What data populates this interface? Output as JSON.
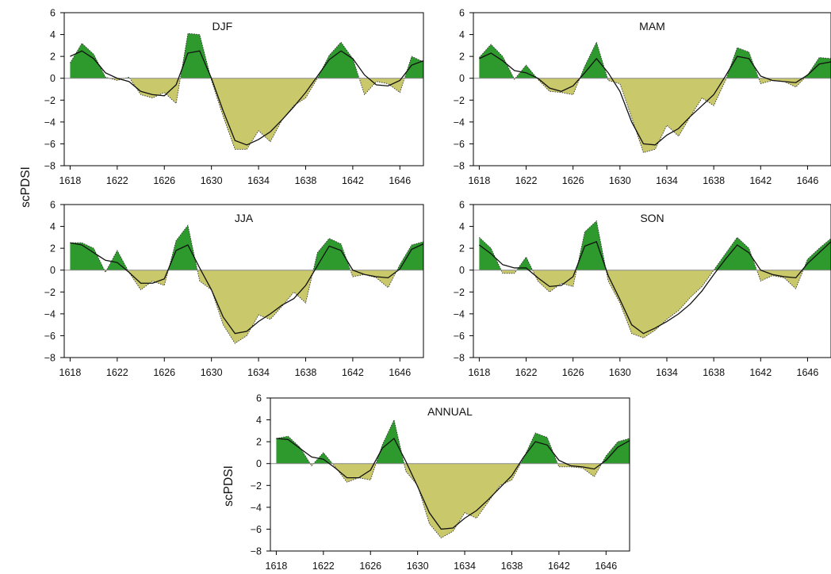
{
  "colors": {
    "positive_fill": "#2e9a2e",
    "negative_fill": "#c9c86a",
    "smooth_line": "#111111",
    "raw_line": "#333333",
    "zero_line": "#8a8a8a",
    "axis": "#000000"
  },
  "chart_data": [
    {
      "type": "area",
      "title": "DJF",
      "ylabel": "scPDSI",
      "xlim": [
        1617.5,
        1648
      ],
      "ylim": [
        -8,
        6
      ],
      "xticks": [
        1618,
        1622,
        1626,
        1630,
        1634,
        1638,
        1642,
        1646
      ],
      "yticks": [
        -8,
        -6,
        -4,
        -2,
        0,
        2,
        4,
        6
      ],
      "series": [
        {
          "x": [
            1618,
            1619,
            1620,
            1621,
            1622,
            1623,
            1624,
            1625,
            1626,
            1627,
            1628,
            1629,
            1630,
            1631,
            1632,
            1633,
            1634,
            1635,
            1636,
            1637,
            1638,
            1639,
            1640,
            1641,
            1642,
            1643,
            1644,
            1645,
            1646,
            1647,
            1648
          ],
          "values": [
            1.4,
            3.2,
            2.2,
            0.1,
            -0.2,
            0.1,
            -1.5,
            -1.8,
            -1.3,
            -2.3,
            4.1,
            4.0,
            -0.2,
            -3.5,
            -6.5,
            -6.5,
            -4.8,
            -5.8,
            -3.8,
            -2.5,
            -1.8,
            0.0,
            2.1,
            3.3,
            1.8,
            -1.5,
            -0.3,
            -0.5,
            -1.3,
            2.0,
            1.5
          ]
        },
        {
          "x": [
            1618,
            1619,
            1620,
            1621,
            1622,
            1623,
            1624,
            1625,
            1626,
            1627,
            1628,
            1629,
            1630,
            1631,
            1632,
            1633,
            1634,
            1635,
            1636,
            1637,
            1638,
            1639,
            1640,
            1641,
            1642,
            1643,
            1644,
            1645,
            1646,
            1647,
            1648
          ],
          "values": [
            2.0,
            2.5,
            1.8,
            0.5,
            0.0,
            -0.3,
            -1.2,
            -1.5,
            -1.6,
            -0.6,
            2.3,
            2.5,
            0.0,
            -3.0,
            -5.7,
            -6.1,
            -5.6,
            -4.9,
            -3.8,
            -2.6,
            -1.3,
            0.2,
            1.7,
            2.5,
            1.8,
            0.3,
            -0.6,
            -0.7,
            -0.2,
            1.2,
            1.6
          ]
        }
      ]
    },
    {
      "type": "area",
      "title": "MAM",
      "ylabel": "",
      "xlim": [
        1617.5,
        1648
      ],
      "ylim": [
        -8,
        6
      ],
      "xticks": [
        1618,
        1622,
        1626,
        1630,
        1634,
        1638,
        1642,
        1646
      ],
      "yticks": [
        -8,
        -6,
        -4,
        -2,
        0,
        2,
        4,
        6
      ],
      "series": [
        {
          "x": [
            1618,
            1619,
            1620,
            1621,
            1622,
            1623,
            1624,
            1625,
            1626,
            1627,
            1628,
            1629,
            1630,
            1631,
            1632,
            1633,
            1634,
            1635,
            1636,
            1637,
            1638,
            1639,
            1640,
            1641,
            1642,
            1643,
            1644,
            1645,
            1646,
            1647,
            1648
          ],
          "values": [
            1.9,
            3.1,
            2.0,
            -0.1,
            1.2,
            -0.1,
            -1.2,
            -1.3,
            -1.5,
            1.1,
            3.3,
            -0.2,
            -0.5,
            -3.6,
            -6.8,
            -6.5,
            -4.3,
            -5.3,
            -3.5,
            -1.8,
            -2.5,
            -0.2,
            2.8,
            2.4,
            -0.5,
            -0.2,
            -0.3,
            -0.8,
            0.3,
            1.9,
            1.8
          ]
        },
        {
          "x": [
            1618,
            1619,
            1620,
            1621,
            1622,
            1623,
            1624,
            1625,
            1626,
            1627,
            1628,
            1629,
            1630,
            1631,
            1632,
            1633,
            1634,
            1635,
            1636,
            1637,
            1638,
            1639,
            1640,
            1641,
            1642,
            1643,
            1644,
            1645,
            1646,
            1647,
            1648
          ],
          "values": [
            1.8,
            2.3,
            1.6,
            0.7,
            0.5,
            0.0,
            -0.9,
            -1.2,
            -0.7,
            0.5,
            1.8,
            0.5,
            -1.2,
            -4.0,
            -6.0,
            -6.1,
            -5.2,
            -4.6,
            -3.5,
            -2.5,
            -1.5,
            0.2,
            2.0,
            1.8,
            0.2,
            -0.2,
            -0.3,
            -0.4,
            0.3,
            1.3,
            1.5
          ]
        }
      ]
    },
    {
      "type": "area",
      "title": "JJA",
      "ylabel": "",
      "xlim": [
        1617.5,
        1648
      ],
      "ylim": [
        -8,
        6
      ],
      "xticks": [
        1618,
        1622,
        1626,
        1630,
        1634,
        1638,
        1642,
        1646
      ],
      "yticks": [
        -8,
        -6,
        -4,
        -2,
        0,
        2,
        4,
        6
      ],
      "series": [
        {
          "x": [
            1618,
            1619,
            1620,
            1621,
            1622,
            1623,
            1624,
            1625,
            1626,
            1627,
            1628,
            1629,
            1630,
            1631,
            1632,
            1633,
            1634,
            1635,
            1636,
            1637,
            1638,
            1639,
            1640,
            1641,
            1642,
            1643,
            1644,
            1645,
            1646,
            1647,
            1648
          ],
          "values": [
            2.5,
            2.5,
            2.0,
            -0.2,
            1.8,
            -0.2,
            -1.8,
            -1.0,
            -1.4,
            2.7,
            4.1,
            -1.0,
            -1.8,
            -5.0,
            -6.7,
            -6.0,
            -4.1,
            -4.5,
            -3.3,
            -2.0,
            -3.0,
            1.6,
            2.9,
            2.4,
            -0.6,
            -0.4,
            -0.7,
            -1.6,
            0.5,
            2.3,
            2.6
          ]
        },
        {
          "x": [
            1618,
            1619,
            1620,
            1621,
            1622,
            1623,
            1624,
            1625,
            1626,
            1627,
            1628,
            1629,
            1630,
            1631,
            1632,
            1633,
            1634,
            1635,
            1636,
            1637,
            1638,
            1639,
            1640,
            1641,
            1642,
            1643,
            1644,
            1645,
            1646,
            1647,
            1648
          ],
          "values": [
            2.5,
            2.3,
            1.6,
            0.9,
            0.7,
            -0.2,
            -1.2,
            -1.2,
            -0.8,
            1.8,
            2.3,
            0.2,
            -1.8,
            -4.3,
            -5.8,
            -5.6,
            -4.7,
            -4.0,
            -3.2,
            -2.6,
            -1.4,
            0.4,
            2.2,
            1.8,
            0.0,
            -0.4,
            -0.6,
            -0.7,
            0.1,
            1.9,
            2.4
          ]
        }
      ]
    },
    {
      "type": "area",
      "title": "SON",
      "ylabel": "",
      "xlim": [
        1617.5,
        1648
      ],
      "ylim": [
        -8,
        6
      ],
      "xticks": [
        1618,
        1622,
        1626,
        1630,
        1634,
        1638,
        1642,
        1646
      ],
      "yticks": [
        -8,
        -6,
        -4,
        -2,
        0,
        2,
        4,
        6
      ],
      "series": [
        {
          "x": [
            1618,
            1619,
            1620,
            1621,
            1622,
            1623,
            1624,
            1625,
            1626,
            1627,
            1628,
            1629,
            1630,
            1631,
            1632,
            1633,
            1634,
            1635,
            1636,
            1637,
            1638,
            1639,
            1640,
            1641,
            1642,
            1643,
            1644,
            1645,
            1646,
            1647,
            1648
          ],
          "values": [
            3.0,
            2.0,
            -0.3,
            -0.3,
            1.2,
            -1.0,
            -2.0,
            -1.2,
            -1.5,
            3.5,
            4.5,
            -1.0,
            -3.0,
            -5.8,
            -6.2,
            -5.5,
            -4.5,
            -3.7,
            -2.5,
            -1.5,
            0.0,
            1.5,
            3.0,
            2.0,
            -1.0,
            -0.5,
            -0.7,
            -1.7,
            1.0,
            2.0,
            2.9
          ]
        },
        {
          "x": [
            1618,
            1619,
            1620,
            1621,
            1622,
            1623,
            1624,
            1625,
            1626,
            1627,
            1628,
            1629,
            1630,
            1631,
            1632,
            1633,
            1634,
            1635,
            1636,
            1637,
            1638,
            1639,
            1640,
            1641,
            1642,
            1643,
            1644,
            1645,
            1646,
            1647,
            1648
          ],
          "values": [
            2.3,
            1.5,
            0.5,
            0.2,
            0.2,
            -0.7,
            -1.5,
            -1.4,
            -0.6,
            2.2,
            2.6,
            -0.5,
            -2.7,
            -5.0,
            -5.8,
            -5.3,
            -4.7,
            -4.0,
            -3.1,
            -1.9,
            -0.4,
            1.0,
            2.3,
            1.6,
            0.0,
            -0.4,
            -0.6,
            -0.7,
            0.6,
            1.6,
            2.6
          ]
        }
      ]
    },
    {
      "type": "area",
      "title": "ANNUAL",
      "ylabel": "scPDSI",
      "xlim": [
        1617.5,
        1648
      ],
      "ylim": [
        -8,
        6
      ],
      "xticks": [
        1618,
        1622,
        1626,
        1630,
        1634,
        1638,
        1642,
        1646
      ],
      "yticks": [
        -8,
        -6,
        -4,
        -2,
        0,
        2,
        4,
        6
      ],
      "series": [
        {
          "x": [
            1618,
            1619,
            1620,
            1621,
            1622,
            1623,
            1624,
            1625,
            1626,
            1627,
            1628,
            1629,
            1630,
            1631,
            1632,
            1633,
            1634,
            1635,
            1636,
            1637,
            1638,
            1639,
            1640,
            1641,
            1642,
            1643,
            1644,
            1645,
            1646,
            1647,
            1648
          ],
          "values": [
            2.3,
            2.5,
            1.5,
            -0.2,
            1.0,
            -0.3,
            -1.7,
            -1.3,
            -1.5,
            1.7,
            4.0,
            -0.7,
            -2.0,
            -5.5,
            -6.8,
            -6.2,
            -4.5,
            -5.0,
            -3.5,
            -2.0,
            -1.5,
            0.5,
            2.8,
            2.4,
            -0.3,
            -0.3,
            -0.4,
            -1.2,
            0.7,
            2.0,
            2.3
          ]
        },
        {
          "x": [
            1618,
            1619,
            1620,
            1621,
            1622,
            1623,
            1624,
            1625,
            1626,
            1627,
            1628,
            1629,
            1630,
            1631,
            1632,
            1633,
            1634,
            1635,
            1636,
            1637,
            1638,
            1639,
            1640,
            1641,
            1642,
            1643,
            1644,
            1645,
            1646,
            1647,
            1648
          ],
          "values": [
            2.3,
            2.2,
            1.4,
            0.6,
            0.4,
            -0.4,
            -1.3,
            -1.3,
            -0.6,
            1.4,
            2.3,
            0.2,
            -2.1,
            -4.5,
            -6.0,
            -5.9,
            -5.0,
            -4.3,
            -3.3,
            -2.2,
            -1.1,
            0.6,
            2.0,
            1.7,
            0.3,
            -0.2,
            -0.3,
            -0.5,
            0.3,
            1.5,
            2.1
          ]
        }
      ]
    }
  ]
}
